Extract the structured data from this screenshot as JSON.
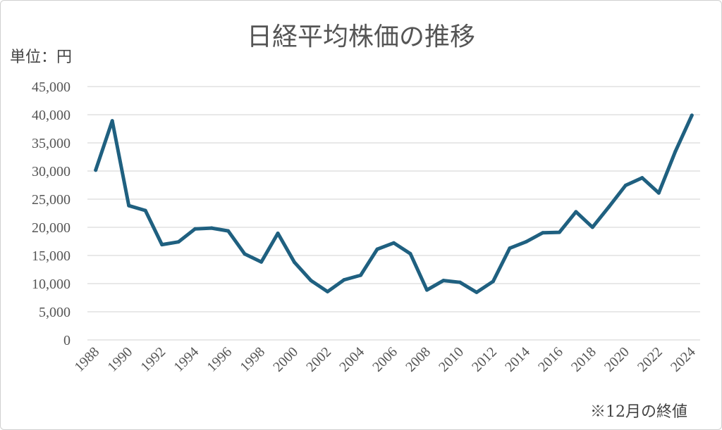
{
  "chart_data": {
    "type": "line",
    "title": "日経平均株価の推移",
    "unit_label": "単位：円",
    "note": "※12月の終値",
    "x": [
      1988,
      1989,
      1990,
      1991,
      1992,
      1993,
      1994,
      1995,
      1996,
      1997,
      1998,
      1999,
      2000,
      2001,
      2002,
      2003,
      2004,
      2005,
      2006,
      2007,
      2008,
      2009,
      2010,
      2011,
      2012,
      2013,
      2014,
      2015,
      2016,
      2017,
      2018,
      2019,
      2020,
      2021,
      2022,
      2023,
      2024
    ],
    "x_tick_labels": [
      "1988",
      "1990",
      "1992",
      "1994",
      "1996",
      "1998",
      "2000",
      "2002",
      "2004",
      "2006",
      "2008",
      "2010",
      "2012",
      "2014",
      "2016",
      "2018",
      "2020",
      "2022",
      "2024"
    ],
    "series": [
      {
        "values": [
          30159,
          38916,
          23849,
          22984,
          16925,
          17417,
          19723,
          19868,
          19361,
          15259,
          13842,
          18934,
          13786,
          10543,
          8579,
          10677,
          11489,
          16111,
          17226,
          15308,
          8860,
          10546,
          10229,
          8455,
          10395,
          16291,
          17451,
          19034,
          19114,
          22765,
          20015,
          23657,
          27444,
          28792,
          26095,
          33464,
          39895
        ],
        "color": "#1f6080"
      }
    ],
    "y_tick_labels": [
      "0",
      "5,000",
      "10,000",
      "15,000",
      "20,000",
      "25,000",
      "30,000",
      "35,000",
      "40,000",
      "45,000"
    ],
    "ylim": [
      0,
      45000
    ],
    "grid": true,
    "legend": "none"
  }
}
